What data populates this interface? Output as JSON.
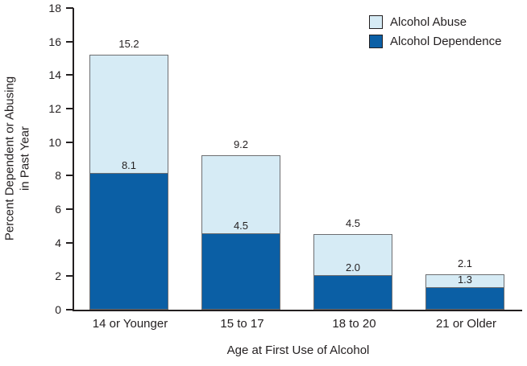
{
  "figure": {
    "background": "#FFFFFF",
    "axis_color": "#231F20",
    "text_color": "#231F20",
    "bar_border_color": "#6D6E71"
  },
  "chart_data": {
    "type": "bar",
    "stacked": true,
    "title": "",
    "xlabel": "Age at First Use of Alcohol",
    "ylabel": "Percent Dependent or Abusing in Past Year",
    "ylabel_lines": [
      "Percent Dependent or Abusing",
      "in Past Year"
    ],
    "ylim": [
      0,
      18
    ],
    "yticks": [
      "0",
      "2",
      "4",
      "6",
      "8",
      "10",
      "12",
      "14",
      "16",
      "18"
    ],
    "grid": false,
    "categories": [
      "14 or Younger",
      "15 to 17",
      "18 to 20",
      "21 or Older"
    ],
    "series": [
      {
        "name": "Alcohol Dependence",
        "color": "#0B5FA5",
        "values": [
          8.1,
          4.5,
          2.0,
          1.3
        ]
      },
      {
        "name": "Alcohol Abuse",
        "color": "#D6EBF5",
        "values": [
          7.1,
          4.7,
          2.5,
          0.8
        ]
      }
    ],
    "totals": [
      15.2,
      9.2,
      4.5,
      2.1
    ],
    "total_labels": [
      "15.2",
      "9.2",
      "4.5",
      "2.1"
    ],
    "dependence_labels": [
      "8.1",
      "4.5",
      "2.0",
      "1.3"
    ],
    "legend": {
      "position": "top-right",
      "items": [
        {
          "label": "Alcohol Abuse",
          "color": "#D6EBF5"
        },
        {
          "label": "Alcohol Dependence",
          "color": "#0B5FA5"
        }
      ]
    }
  }
}
